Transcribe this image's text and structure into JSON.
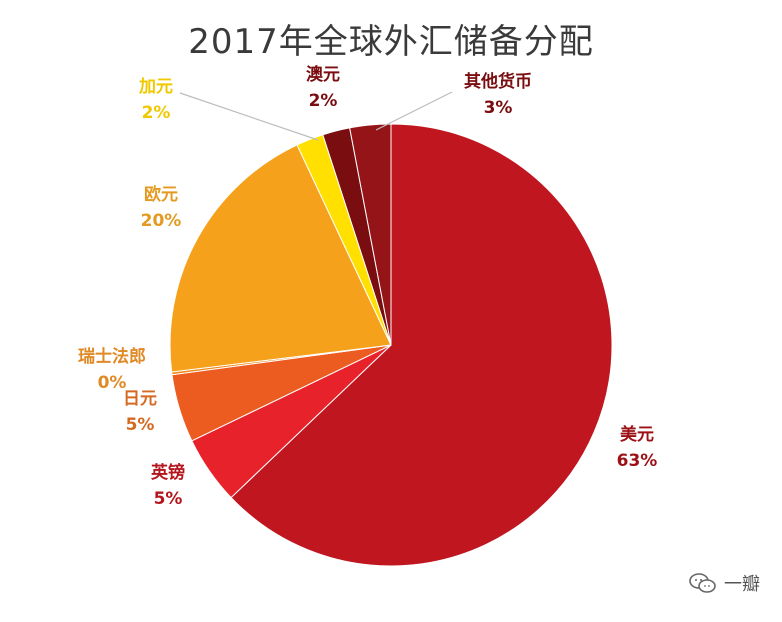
{
  "chart_data": {
    "type": "pie",
    "title": "2017年全球外汇储备分配",
    "start_angle_deg": 0,
    "direction": "clockwise",
    "slices": [
      {
        "label": "美元",
        "pct_text": "63%",
        "value": 63,
        "color": "#c0161f",
        "text_color": "#9c1016"
      },
      {
        "label": "英镑",
        "pct_text": "5%",
        "value": 5,
        "color": "#e8222a",
        "text_color": "#b3161c"
      },
      {
        "label": "日元",
        "pct_text": "5%",
        "value": 5,
        "color": "#ec5b20",
        "text_color": "#d46a22"
      },
      {
        "label": "瑞士法郎",
        "pct_text": "0%",
        "value": 0.2,
        "color": "#f08a1a",
        "text_color": "#e08a26"
      },
      {
        "label": "欧元",
        "pct_text": "20%",
        "value": 20,
        "color": "#f6a11b",
        "text_color": "#e39a1f"
      },
      {
        "label": "加元",
        "pct_text": "2%",
        "value": 2,
        "color": "#ffe000",
        "text_color": "#f0c800"
      },
      {
        "label": "澳元",
        "pct_text": "2%",
        "value": 2,
        "color": "#7a0d10",
        "text_color": "#7a0d10"
      },
      {
        "label": "其他货币",
        "pct_text": "3%",
        "value": 3,
        "color": "#941418",
        "text_color": "#7a0d10"
      }
    ]
  },
  "watermark": {
    "text": "一瓣",
    "icon": "wechat-icon"
  }
}
